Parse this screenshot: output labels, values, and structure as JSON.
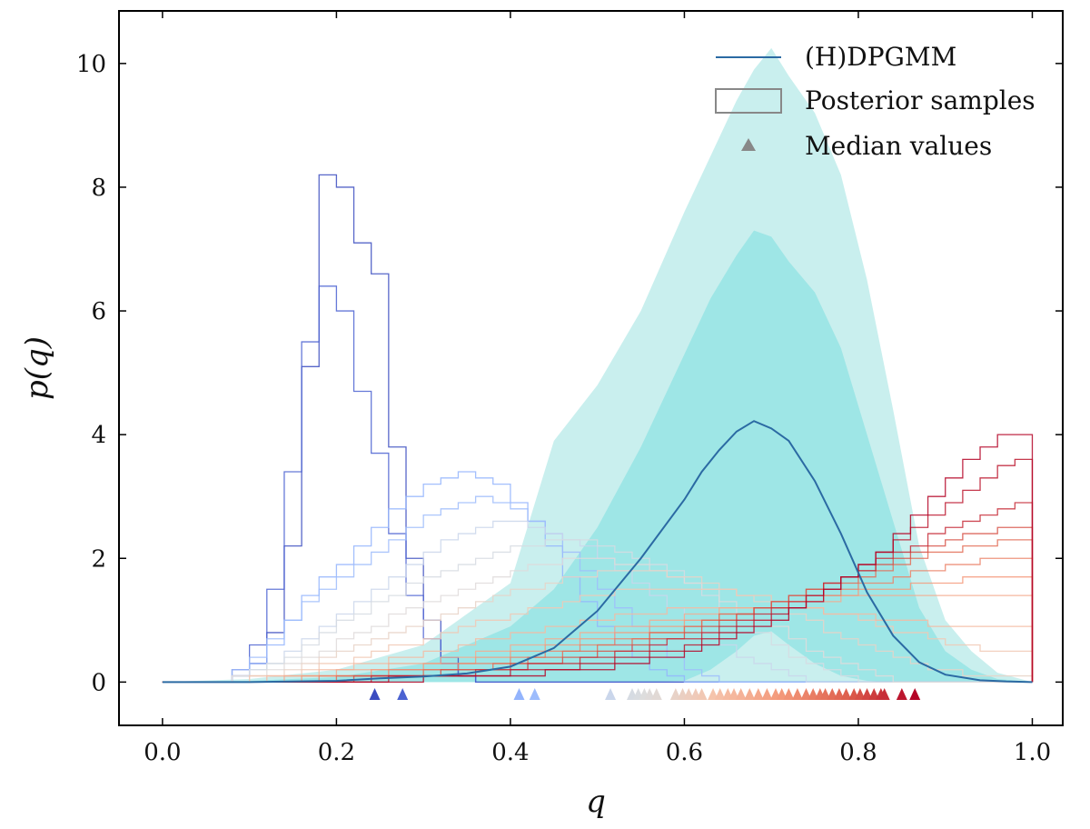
{
  "chart_data": {
    "type": "line",
    "title": "",
    "xlabel": "q",
    "ylabel": "p(q)",
    "xlim": [
      -0.05,
      1.035
    ],
    "ylim": [
      -0.7,
      10.85
    ],
    "xticks": [
      "0.0",
      "0.2",
      "0.4",
      "0.6",
      "0.8",
      "1.0"
    ],
    "xtick_values": [
      0.0,
      0.2,
      0.4,
      0.6,
      0.8,
      1.0
    ],
    "yticks": [
      "0",
      "2",
      "4",
      "6",
      "8",
      "10"
    ],
    "ytick_values": [
      0,
      2,
      4,
      6,
      8,
      10
    ],
    "legend": {
      "position": "top-right",
      "entries": [
        "(H)DPGMM",
        "Posterior samples",
        "Median values"
      ]
    },
    "colors": {
      "median_line": "#2b6aa3",
      "band_outer": "#c9efee",
      "band_inner": "#9ee6e6",
      "cold": "#3b4cc0",
      "warm": "#b40426",
      "legend_gray": "#888888"
    },
    "median_curve": {
      "x": [
        0.0,
        0.1,
        0.2,
        0.25,
        0.3,
        0.35,
        0.4,
        0.45,
        0.5,
        0.55,
        0.6,
        0.62,
        0.64,
        0.66,
        0.68,
        0.7,
        0.72,
        0.75,
        0.78,
        0.81,
        0.84,
        0.87,
        0.9,
        0.94,
        0.97,
        1.0
      ],
      "y": [
        0.0,
        0.0,
        0.02,
        0.06,
        0.09,
        0.14,
        0.25,
        0.55,
        1.15,
        2.0,
        2.95,
        3.4,
        3.75,
        4.05,
        4.22,
        4.1,
        3.9,
        3.25,
        2.4,
        1.45,
        0.75,
        0.32,
        0.12,
        0.03,
        0.01,
        0.0
      ]
    },
    "band_90": {
      "x": [
        0.0,
        0.1,
        0.2,
        0.3,
        0.4,
        0.45,
        0.5,
        0.55,
        0.6,
        0.63,
        0.66,
        0.68,
        0.7,
        0.72,
        0.75,
        0.78,
        0.81,
        0.84,
        0.87,
        0.9,
        0.93,
        0.96,
        1.0
      ],
      "upper": [
        0.0,
        0.05,
        0.2,
        0.6,
        1.6,
        3.9,
        4.8,
        6.0,
        7.6,
        8.5,
        9.4,
        9.9,
        10.25,
        9.8,
        9.2,
        8.2,
        6.5,
        4.4,
        2.2,
        1.0,
        0.5,
        0.15,
        0.0
      ],
      "lower": [
        0.0,
        0.0,
        0.0,
        0.0,
        0.0,
        0.0,
        0.0,
        0.0,
        0.0,
        0.0,
        0.0,
        0.0,
        0.0,
        0.0,
        0.0,
        0.0,
        0.0,
        0.0,
        0.0,
        0.0,
        0.0,
        0.0,
        0.0
      ]
    },
    "band_68": {
      "x": [
        0.0,
        0.1,
        0.2,
        0.3,
        0.4,
        0.45,
        0.5,
        0.55,
        0.6,
        0.63,
        0.66,
        0.68,
        0.7,
        0.72,
        0.75,
        0.78,
        0.81,
        0.84,
        0.87,
        0.9,
        0.93,
        0.96,
        1.0
      ],
      "upper": [
        0.0,
        0.02,
        0.08,
        0.3,
        0.9,
        1.5,
        2.5,
        3.8,
        5.3,
        6.2,
        6.9,
        7.3,
        7.2,
        6.8,
        6.3,
        5.4,
        4.0,
        2.6,
        1.2,
        0.5,
        0.2,
        0.05,
        0.0
      ],
      "lower": [
        0.0,
        0.0,
        0.0,
        0.0,
        0.0,
        0.0,
        0.0,
        0.0,
        0.02,
        0.2,
        0.5,
        0.75,
        0.82,
        0.6,
        0.3,
        0.1,
        0.02,
        0.0,
        0.0,
        0.0,
        0.0,
        0.0,
        0.0
      ]
    },
    "sample_bin_edges": [
      0.0,
      0.02,
      0.04,
      0.06,
      0.08,
      0.1,
      0.12,
      0.14,
      0.16,
      0.18,
      0.2,
      0.22,
      0.24,
      0.26,
      0.28,
      0.3,
      0.32,
      0.34,
      0.36,
      0.38,
      0.4,
      0.42,
      0.44,
      0.46,
      0.48,
      0.5,
      0.52,
      0.54,
      0.56,
      0.58,
      0.6,
      0.62,
      0.64,
      0.66,
      0.68,
      0.7,
      0.72,
      0.74,
      0.76,
      0.78,
      0.8,
      0.82,
      0.84,
      0.86,
      0.88,
      0.9,
      0.92,
      0.94,
      0.96,
      0.98,
      1.0
    ],
    "sample_histograms": [
      {
        "median": 0.244,
        "counts": [
          0,
          0,
          0,
          0,
          0.1,
          0.3,
          0.8,
          2.2,
          5.1,
          8.2,
          8.0,
          7.1,
          6.6,
          3.8,
          2.0,
          1.0,
          0.4,
          0.1,
          0,
          0,
          0,
          0,
          0,
          0,
          0,
          0,
          0,
          0,
          0,
          0,
          0,
          0,
          0,
          0,
          0,
          0,
          0,
          0,
          0,
          0,
          0,
          0,
          0,
          0,
          0,
          0,
          0,
          0,
          0,
          0
        ]
      },
      {
        "median": 0.276,
        "counts": [
          0,
          0,
          0,
          0,
          0.2,
          0.6,
          1.5,
          3.4,
          5.5,
          6.4,
          6.0,
          4.7,
          3.7,
          2.4,
          1.4,
          0.7,
          0.3,
          0.1,
          0,
          0,
          0,
          0,
          0,
          0,
          0,
          0,
          0,
          0,
          0,
          0,
          0,
          0,
          0,
          0,
          0,
          0,
          0,
          0,
          0,
          0,
          0,
          0,
          0,
          0,
          0,
          0,
          0,
          0,
          0,
          0
        ]
      },
      {
        "median": 0.41,
        "counts": [
          0,
          0,
          0,
          0,
          0.1,
          0.3,
          0.6,
          1.0,
          1.4,
          1.7,
          1.9,
          2.2,
          2.5,
          2.8,
          3.0,
          3.2,
          3.3,
          3.4,
          3.3,
          3.2,
          2.9,
          2.6,
          2.2,
          1.7,
          1.3,
          0.9,
          0.6,
          0.4,
          0.2,
          0.1,
          0,
          0,
          0,
          0,
          0,
          0,
          0,
          0,
          0,
          0,
          0,
          0,
          0,
          0,
          0,
          0,
          0,
          0,
          0,
          0
        ]
      },
      {
        "median": 0.428,
        "counts": [
          0,
          0,
          0,
          0,
          0.2,
          0.4,
          0.7,
          1.0,
          1.3,
          1.5,
          1.7,
          1.9,
          2.1,
          2.3,
          2.5,
          2.7,
          2.8,
          2.9,
          3.0,
          2.9,
          2.8,
          2.6,
          2.4,
          2.1,
          1.8,
          1.5,
          1.2,
          0.9,
          0.6,
          0.4,
          0.2,
          0.1,
          0,
          0,
          0,
          0,
          0,
          0,
          0,
          0,
          0,
          0,
          0,
          0,
          0,
          0,
          0,
          0,
          0,
          0
        ]
      },
      {
        "median": 0.515,
        "counts": [
          0,
          0,
          0,
          0,
          0.1,
          0.2,
          0.3,
          0.5,
          0.7,
          0.9,
          1.1,
          1.3,
          1.5,
          1.7,
          1.9,
          2.1,
          2.3,
          2.4,
          2.5,
          2.6,
          2.6,
          2.5,
          2.4,
          2.3,
          2.2,
          2.0,
          1.8,
          1.6,
          1.4,
          1.2,
          1.0,
          0.8,
          0.6,
          0.4,
          0.3,
          0.2,
          0.1,
          0,
          0,
          0,
          0,
          0,
          0,
          0,
          0,
          0,
          0,
          0,
          0,
          0
        ]
      },
      {
        "median": 0.54,
        "counts": [
          0,
          0,
          0,
          0,
          0.1,
          0.2,
          0.3,
          0.4,
          0.6,
          0.8,
          1.0,
          1.1,
          1.3,
          1.4,
          1.6,
          1.7,
          1.8,
          1.9,
          2.0,
          2.1,
          2.2,
          2.2,
          2.3,
          2.3,
          2.3,
          2.2,
          2.1,
          2.0,
          1.9,
          1.8,
          1.6,
          1.4,
          1.2,
          1.0,
          0.8,
          0.6,
          0.4,
          0.3,
          0.2,
          0.1,
          0,
          0,
          0,
          0,
          0,
          0,
          0,
          0,
          0,
          0
        ]
      },
      {
        "median": 0.56,
        "counts": [
          0,
          0,
          0,
          0,
          0.1,
          0.1,
          0.2,
          0.3,
          0.4,
          0.5,
          0.7,
          0.8,
          0.9,
          1.1,
          1.2,
          1.3,
          1.4,
          1.5,
          1.6,
          1.7,
          1.8,
          1.9,
          1.9,
          2.0,
          2.0,
          2.0,
          1.9,
          1.9,
          1.8,
          1.7,
          1.6,
          1.5,
          1.3,
          1.2,
          1.0,
          0.9,
          0.7,
          0.5,
          0.4,
          0.3,
          0.2,
          0.1,
          0,
          0,
          0,
          0,
          0,
          0,
          0,
          0
        ]
      },
      {
        "median": 0.59,
        "counts": [
          0,
          0,
          0,
          0,
          0,
          0.1,
          0.1,
          0.2,
          0.3,
          0.4,
          0.5,
          0.6,
          0.7,
          0.8,
          0.9,
          1.0,
          1.1,
          1.2,
          1.3,
          1.4,
          1.5,
          1.5,
          1.6,
          1.7,
          1.7,
          1.8,
          1.8,
          1.8,
          1.8,
          1.7,
          1.7,
          1.6,
          1.5,
          1.4,
          1.3,
          1.2,
          1.1,
          1.0,
          0.8,
          0.7,
          0.6,
          0.5,
          0.4,
          0.3,
          0.2,
          0.2,
          0.1,
          0.1,
          0.1,
          0.1
        ]
      },
      {
        "median": 0.62,
        "counts": [
          0,
          0,
          0,
          0,
          0,
          0.1,
          0.1,
          0.1,
          0.2,
          0.3,
          0.3,
          0.4,
          0.5,
          0.6,
          0.6,
          0.7,
          0.8,
          0.9,
          1.0,
          1.0,
          1.1,
          1.2,
          1.2,
          1.3,
          1.4,
          1.4,
          1.5,
          1.5,
          1.5,
          1.5,
          1.5,
          1.5,
          1.5,
          1.4,
          1.4,
          1.3,
          1.3,
          1.2,
          1.1,
          1.1,
          1.0,
          0.9,
          0.8,
          0.8,
          0.7,
          0.6,
          0.6,
          0.5,
          0.5,
          0.5
        ]
      },
      {
        "median": 0.65,
        "counts": [
          0,
          0,
          0,
          0,
          0,
          0,
          0.1,
          0.1,
          0.1,
          0.2,
          0.2,
          0.3,
          0.3,
          0.4,
          0.4,
          0.5,
          0.5,
          0.6,
          0.7,
          0.7,
          0.8,
          0.8,
          0.9,
          0.9,
          1.0,
          1.0,
          1.1,
          1.1,
          1.1,
          1.2,
          1.2,
          1.2,
          1.2,
          1.2,
          1.2,
          1.2,
          1.2,
          1.2,
          1.1,
          1.1,
          1.1,
          1.0,
          1.0,
          1.0,
          0.9,
          0.9,
          0.9,
          0.9,
          0.9,
          0.9
        ]
      },
      {
        "median": 0.68,
        "counts": [
          0,
          0,
          0,
          0,
          0,
          0,
          0,
          0.1,
          0.1,
          0.1,
          0.2,
          0.2,
          0.2,
          0.3,
          0.3,
          0.3,
          0.4,
          0.4,
          0.5,
          0.5,
          0.6,
          0.6,
          0.7,
          0.7,
          0.8,
          0.8,
          0.9,
          0.9,
          1.0,
          1.0,
          1.1,
          1.1,
          1.2,
          1.2,
          1.2,
          1.3,
          1.3,
          1.3,
          1.3,
          1.4,
          1.4,
          1.4,
          1.4,
          1.4,
          1.4,
          1.4,
          1.4,
          1.4,
          1.4,
          1.4
        ]
      },
      {
        "median": 0.71,
        "counts": [
          0,
          0,
          0,
          0,
          0,
          0,
          0,
          0,
          0.1,
          0.1,
          0.1,
          0.1,
          0.2,
          0.2,
          0.2,
          0.3,
          0.3,
          0.3,
          0.4,
          0.4,
          0.5,
          0.5,
          0.6,
          0.6,
          0.7,
          0.7,
          0.8,
          0.8,
          0.9,
          0.9,
          1.0,
          1.0,
          1.1,
          1.1,
          1.2,
          1.2,
          1.3,
          1.3,
          1.4,
          1.4,
          1.5,
          1.5,
          1.5,
          1.6,
          1.6,
          1.6,
          1.7,
          1.7,
          1.7,
          1.7
        ]
      },
      {
        "median": 0.74,
        "counts": [
          0,
          0,
          0,
          0,
          0,
          0,
          0,
          0,
          0,
          0.1,
          0.1,
          0.1,
          0.1,
          0.2,
          0.2,
          0.2,
          0.2,
          0.3,
          0.3,
          0.3,
          0.4,
          0.4,
          0.5,
          0.5,
          0.6,
          0.6,
          0.7,
          0.7,
          0.8,
          0.8,
          0.9,
          1.0,
          1.0,
          1.1,
          1.2,
          1.2,
          1.3,
          1.4,
          1.4,
          1.5,
          1.6,
          1.6,
          1.7,
          1.8,
          1.8,
          1.9,
          1.9,
          2.0,
          2.0,
          2.0
        ]
      },
      {
        "median": 0.77,
        "counts": [
          0,
          0,
          0,
          0,
          0,
          0,
          0,
          0,
          0,
          0,
          0.1,
          0.1,
          0.1,
          0.1,
          0.1,
          0.2,
          0.2,
          0.2,
          0.2,
          0.3,
          0.3,
          0.4,
          0.4,
          0.5,
          0.5,
          0.6,
          0.6,
          0.7,
          0.8,
          0.8,
          0.9,
          1.0,
          1.1,
          1.1,
          1.2,
          1.3,
          1.4,
          1.5,
          1.6,
          1.6,
          1.7,
          1.8,
          1.9,
          2.0,
          2.1,
          2.1,
          2.2,
          2.2,
          2.3,
          2.3
        ]
      },
      {
        "median": 0.8,
        "counts": [
          0,
          0,
          0,
          0,
          0,
          0,
          0,
          0,
          0,
          0,
          0,
          0.1,
          0.1,
          0.1,
          0.1,
          0.1,
          0.2,
          0.2,
          0.2,
          0.2,
          0.3,
          0.3,
          0.3,
          0.4,
          0.4,
          0.5,
          0.5,
          0.6,
          0.7,
          0.7,
          0.8,
          0.9,
          1.0,
          1.1,
          1.2,
          1.3,
          1.4,
          1.5,
          1.6,
          1.7,
          1.8,
          1.9,
          2.0,
          2.1,
          2.2,
          2.3,
          2.4,
          2.4,
          2.5,
          2.5
        ]
      },
      {
        "median": 0.83,
        "counts": [
          0,
          0,
          0,
          0,
          0,
          0,
          0,
          0,
          0,
          0,
          0,
          0,
          0.1,
          0.1,
          0.1,
          0.1,
          0.1,
          0.1,
          0.2,
          0.2,
          0.2,
          0.3,
          0.3,
          0.3,
          0.4,
          0.4,
          0.5,
          0.5,
          0.6,
          0.7,
          0.7,
          0.8,
          0.9,
          1.0,
          1.1,
          1.2,
          1.3,
          1.4,
          1.6,
          1.7,
          1.8,
          2.0,
          2.1,
          2.2,
          2.4,
          2.5,
          2.6,
          2.7,
          2.8,
          2.9
        ]
      },
      {
        "median": 0.85,
        "counts": [
          0,
          0,
          0,
          0,
          0,
          0,
          0,
          0,
          0,
          0,
          0,
          0,
          0,
          0.1,
          0.1,
          0.1,
          0.1,
          0.1,
          0.1,
          0.1,
          0.2,
          0.2,
          0.2,
          0.2,
          0.3,
          0.3,
          0.4,
          0.4,
          0.5,
          0.5,
          0.6,
          0.7,
          0.8,
          0.9,
          1.0,
          1.1,
          1.2,
          1.4,
          1.5,
          1.7,
          1.9,
          2.1,
          2.3,
          2.5,
          2.7,
          2.9,
          3.1,
          3.3,
          3.5,
          3.6
        ]
      },
      {
        "median": 0.865,
        "counts": [
          0,
          0,
          0,
          0,
          0,
          0,
          0,
          0,
          0,
          0,
          0,
          0,
          0,
          0,
          0,
          0.1,
          0.1,
          0.1,
          0.1,
          0.1,
          0.1,
          0.1,
          0.2,
          0.2,
          0.2,
          0.2,
          0.3,
          0.3,
          0.4,
          0.4,
          0.5,
          0.6,
          0.7,
          0.8,
          0.9,
          1.0,
          1.2,
          1.3,
          1.5,
          1.7,
          1.9,
          2.1,
          2.4,
          2.7,
          3.0,
          3.3,
          3.6,
          3.8,
          4.0,
          4.0
        ]
      }
    ],
    "median_markers": [
      0.244,
      0.276,
      0.41,
      0.428,
      0.515,
      0.54,
      0.547,
      0.554,
      0.56,
      0.568,
      0.59,
      0.598,
      0.605,
      0.613,
      0.62,
      0.633,
      0.641,
      0.65,
      0.657,
      0.665,
      0.675,
      0.685,
      0.695,
      0.705,
      0.712,
      0.72,
      0.73,
      0.74,
      0.748,
      0.756,
      0.762,
      0.77,
      0.778,
      0.786,
      0.795,
      0.802,
      0.81,
      0.818,
      0.826,
      0.83,
      0.85,
      0.865
    ]
  }
}
